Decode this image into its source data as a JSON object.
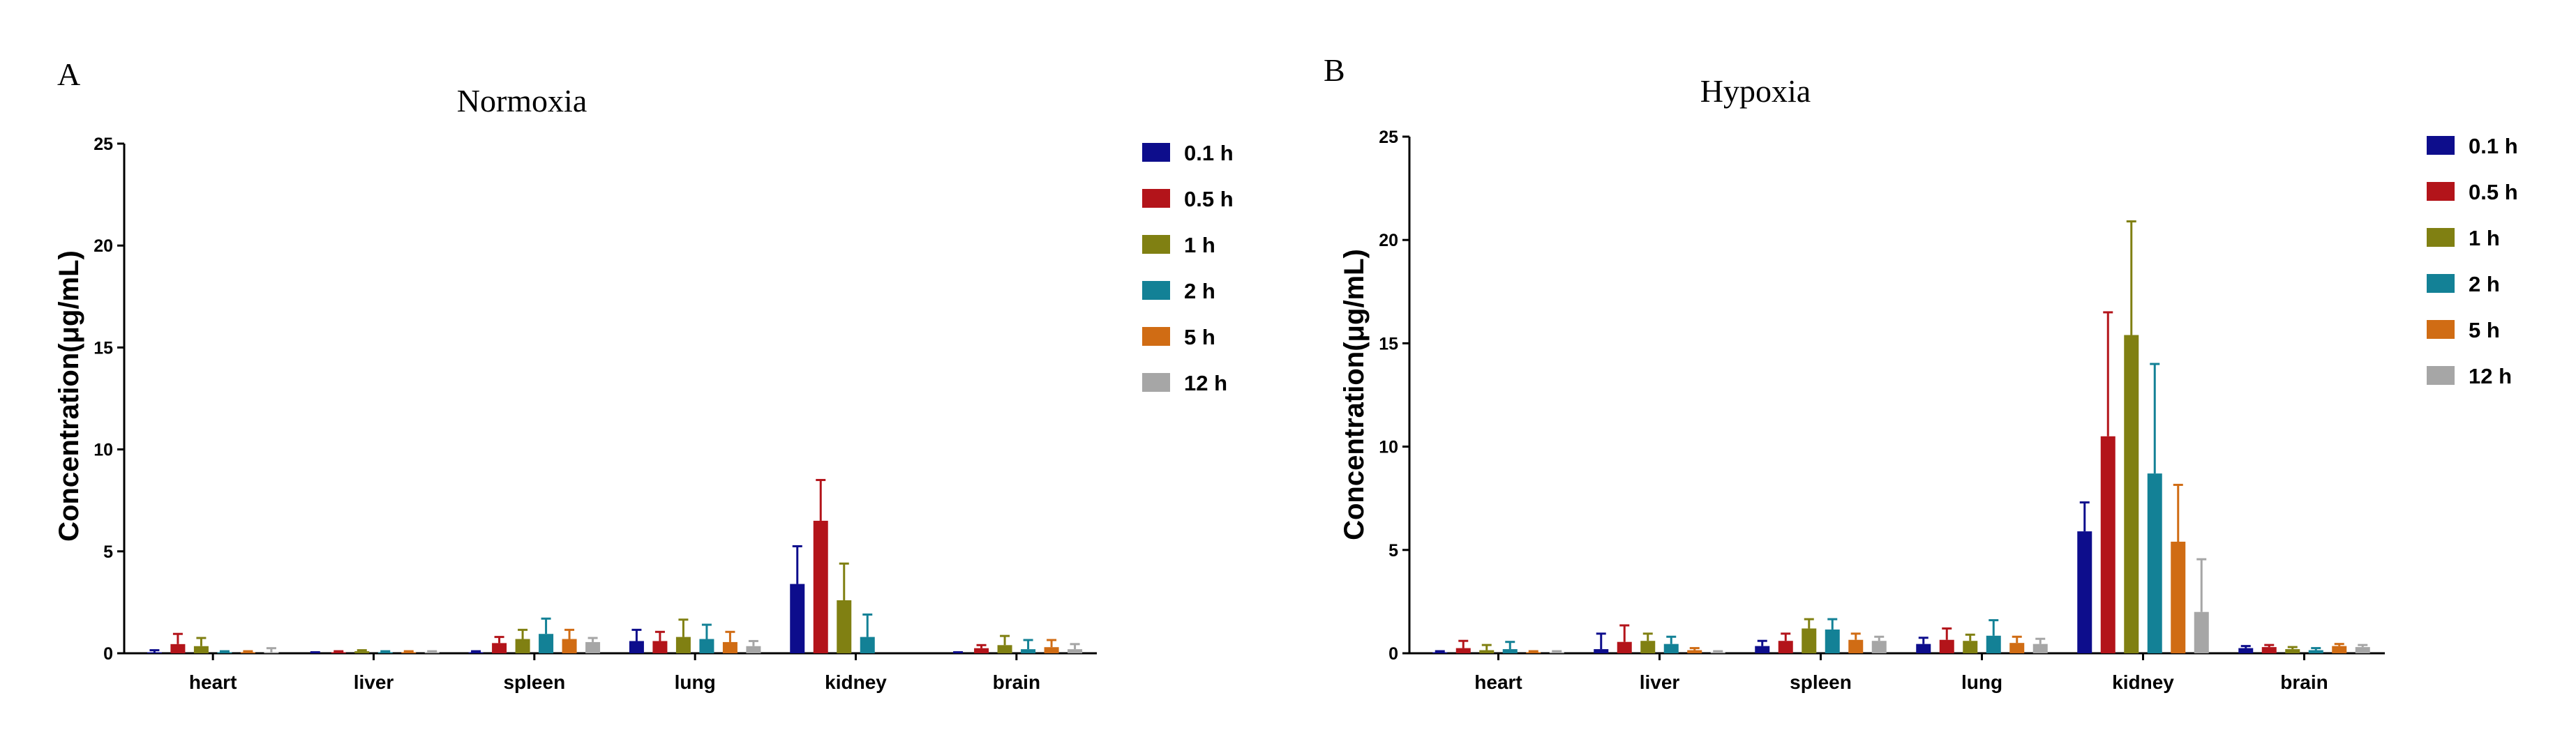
{
  "panel_letters": [
    "A",
    "B"
  ],
  "colors": {
    "0.1 h": "#0d0d8c",
    "0.5 h": "#b3141a",
    "1 h": "#808012",
    "2 h": "#138196",
    "5 h": "#d06c14",
    "12 h": "#a6a6a6"
  },
  "chart_data": [
    {
      "type": "bar",
      "title": "Normoxia",
      "xlabel": "",
      "ylabel": "Concentration(μg/mL)",
      "ylim": [
        0,
        25
      ],
      "yticks": [
        0,
        5,
        10,
        15,
        20,
        25
      ],
      "grid": false,
      "legend": "right",
      "categories": [
        "heart",
        "liver",
        "spleen",
        "lung",
        "kidney",
        "brain"
      ],
      "series": [
        {
          "name": "0.1 h",
          "values": [
            0.05,
            0.0,
            0.05,
            0.6,
            3.4,
            0.0
          ],
          "errors": [
            0.1,
            0.05,
            0.05,
            0.55,
            1.85,
            0.05
          ]
        },
        {
          "name": "0.5 h",
          "values": [
            0.45,
            0.05,
            0.5,
            0.6,
            6.5,
            0.25
          ],
          "errors": [
            0.5,
            0.05,
            0.3,
            0.45,
            2.0,
            0.15
          ]
        },
        {
          "name": "1 h",
          "values": [
            0.35,
            0.1,
            0.7,
            0.8,
            2.6,
            0.4
          ],
          "errors": [
            0.4,
            0.05,
            0.45,
            0.85,
            1.8,
            0.45
          ]
        },
        {
          "name": "2 h",
          "values": [
            0.05,
            0.05,
            0.95,
            0.7,
            0.8,
            0.2
          ],
          "errors": [
            0.05,
            0.05,
            0.75,
            0.7,
            1.1,
            0.45
          ]
        },
        {
          "name": "5 h",
          "values": [
            0.05,
            0.05,
            0.7,
            0.55,
            0.0,
            0.3
          ],
          "errors": [
            0.05,
            0.05,
            0.45,
            0.5,
            0.0,
            0.35
          ]
        },
        {
          "name": "12 h",
          "values": [
            0.05,
            0.05,
            0.55,
            0.35,
            0.0,
            0.2
          ],
          "errors": [
            0.2,
            0.05,
            0.2,
            0.25,
            0.0,
            0.25
          ]
        }
      ]
    },
    {
      "type": "bar",
      "title": "Hypoxia",
      "xlabel": "",
      "ylabel": "Concentration(μg/mL)",
      "ylim": [
        0,
        25
      ],
      "yticks": [
        0,
        5,
        10,
        15,
        20,
        25
      ],
      "grid": false,
      "legend": "right",
      "categories": [
        "heart",
        "liver",
        "spleen",
        "lung",
        "kidney",
        "brain"
      ],
      "series": [
        {
          "name": "0.1 h",
          "values": [
            0.05,
            0.2,
            0.35,
            0.45,
            5.9,
            0.25
          ],
          "errors": [
            0.05,
            0.75,
            0.25,
            0.3,
            1.4,
            0.1
          ]
        },
        {
          "name": "0.5 h",
          "values": [
            0.25,
            0.55,
            0.6,
            0.65,
            10.5,
            0.3
          ],
          "errors": [
            0.35,
            0.8,
            0.35,
            0.55,
            6.0,
            0.1
          ]
        },
        {
          "name": "1 h",
          "values": [
            0.15,
            0.6,
            1.2,
            0.6,
            15.4,
            0.2
          ],
          "errors": [
            0.25,
            0.35,
            0.45,
            0.3,
            5.5,
            0.1
          ]
        },
        {
          "name": "2 h",
          "values": [
            0.2,
            0.45,
            1.15,
            0.85,
            8.7,
            0.15
          ],
          "errors": [
            0.35,
            0.35,
            0.5,
            0.75,
            5.3,
            0.1
          ]
        },
        {
          "name": "5 h",
          "values": [
            0.05,
            0.15,
            0.65,
            0.5,
            5.4,
            0.35
          ],
          "errors": [
            0.05,
            0.1,
            0.3,
            0.3,
            2.75,
            0.1
          ]
        },
        {
          "name": "12 h",
          "values": [
            0.05,
            0.05,
            0.6,
            0.45,
            2.0,
            0.3
          ],
          "errors": [
            0.05,
            0.05,
            0.2,
            0.25,
            2.55,
            0.1
          ]
        }
      ]
    }
  ]
}
